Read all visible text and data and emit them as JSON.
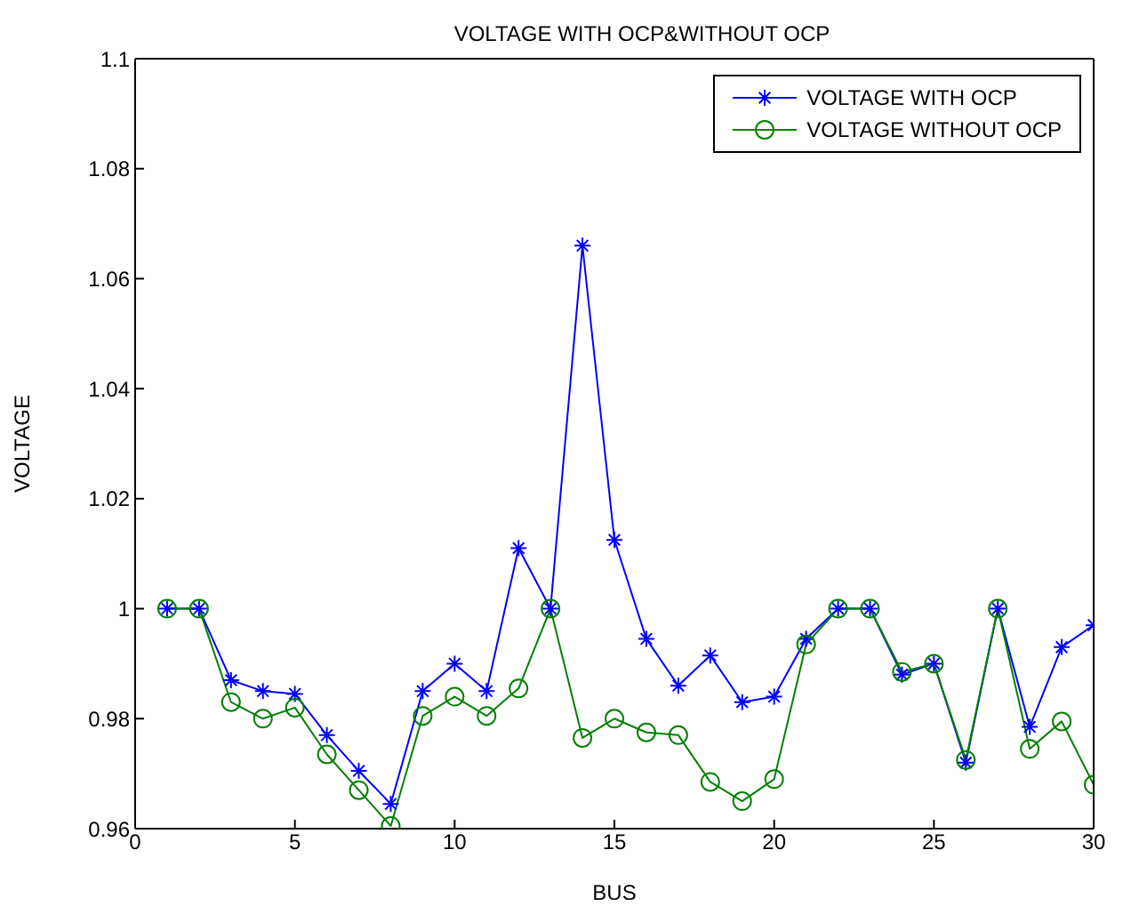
{
  "chart_data": {
    "type": "line",
    "title": "VOLTAGE WITH OCP&WITHOUT OCP",
    "xlabel": "BUS",
    "ylabel": "VOLTAGE",
    "x": [
      1,
      2,
      3,
      4,
      5,
      6,
      7,
      8,
      9,
      10,
      11,
      12,
      13,
      14,
      15,
      16,
      17,
      18,
      19,
      20,
      21,
      22,
      23,
      24,
      25,
      26,
      27,
      28,
      29,
      30
    ],
    "series": [
      {
        "name": "VOLTAGE WITH OCP",
        "color": "#0000ff",
        "marker": "cross",
        "values": [
          1,
          1,
          0.987,
          0.985,
          0.9845,
          0.977,
          0.9705,
          0.9645,
          0.985,
          0.99,
          0.985,
          1.011,
          1,
          1.066,
          1.0125,
          0.9945,
          0.986,
          0.9915,
          0.983,
          0.984,
          0.9945,
          1,
          1,
          0.988,
          0.99,
          0.972,
          1,
          0.9785,
          0.993,
          0.997
        ]
      },
      {
        "name": "VOLTAGE WITHOUT OCP",
        "color": "#008000",
        "marker": "circle",
        "values": [
          1,
          1,
          0.983,
          0.98,
          0.982,
          0.9735,
          0.967,
          0.9605,
          0.9805,
          0.984,
          0.9805,
          0.9855,
          1,
          0.9765,
          0.98,
          0.9775,
          0.977,
          0.9685,
          0.965,
          0.969,
          0.9935,
          1,
          1,
          0.9885,
          0.99,
          0.9725,
          1,
          0.9745,
          0.9795,
          0.968
        ]
      }
    ],
    "xlim": [
      0,
      30
    ],
    "xticks": [
      0,
      5,
      10,
      15,
      20,
      25,
      30
    ],
    "ylim": [
      0.96,
      1.1
    ],
    "yticks": [
      0.96,
      0.98,
      1,
      1.02,
      1.04,
      1.06,
      1.08,
      1.1
    ],
    "grid": false,
    "legend": "top right",
    "line_style": "solid"
  }
}
